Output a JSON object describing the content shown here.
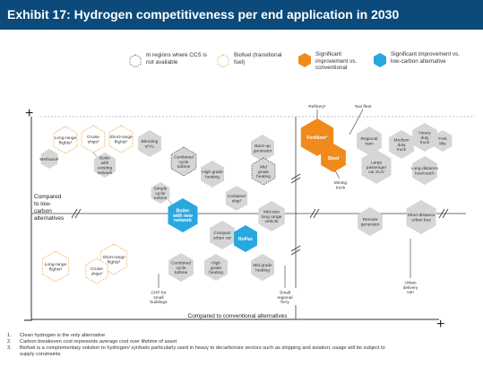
{
  "header": {
    "title": "Exhibit 17: Hydrogen competitiveness per end application in 2030"
  },
  "legend": {
    "ccs": "In regions where CCS is not available",
    "biofuel": "Biofuel (transitional fuel)",
    "conventional": "Significant improvement vs. conventional",
    "low_carbon": "Significant improvement vs. low-carbon alternative",
    "colors": {
      "conventional": "#f08a1c",
      "low_carbon": "#29a7e1",
      "grey": "#d6d6d6"
    }
  },
  "axes": {
    "x_label": "Compared to conventional alternatives",
    "y_label": "Compared to low-carbon alternatives",
    "plus": "+",
    "minus": "–"
  },
  "chart_data": {
    "type": "diagram",
    "items": [
      {
        "label": "Long-range flights³",
        "style": "biofuel"
      },
      {
        "label": "Cruise ships³",
        "style": "biofuel"
      },
      {
        "label": "Short-range flights³",
        "style": "biofuel"
      },
      {
        "label": "Methanol¹",
        "style": "grey"
      },
      {
        "label": "Blending of H₂",
        "style": "grey"
      },
      {
        "label": "Boiler with existing network",
        "style": "grey"
      },
      {
        "label": "Combined cycle turbine",
        "style": "ccs"
      },
      {
        "label": "High grade heating",
        "style": "grey"
      },
      {
        "label": "Back-up generator",
        "style": "grey"
      },
      {
        "label": "Mid grade heating",
        "style": "ccs"
      },
      {
        "label": "Simple cycle turbine",
        "style": "grey"
      },
      {
        "label": "Boiler with new network",
        "style": "low_carbon"
      },
      {
        "label": "Container ship³",
        "style": "grey"
      },
      {
        "label": "Mid-size long range vehicle",
        "style": "grey"
      },
      {
        "label": "Compact urban car",
        "style": "grey"
      },
      {
        "label": "RoPax",
        "style": "low_carbon"
      },
      {
        "label": "Short-range flights³",
        "style": "biofuel"
      },
      {
        "label": "Long-range flights³",
        "style": "biofuel"
      },
      {
        "label": "Cruise ships³",
        "style": "biofuel"
      },
      {
        "label": "Combined cycle turbine",
        "style": "grey"
      },
      {
        "label": "High grade heating",
        "style": "grey"
      },
      {
        "label": "Mid grade heating",
        "style": "grey"
      },
      {
        "label": "CHP for small buildings",
        "style": "callout"
      },
      {
        "label": "Small regional ferry",
        "style": "callout"
      },
      {
        "label": "Refinery¹",
        "style": "callout"
      },
      {
        "label": "Taxi fleet",
        "style": "callout"
      },
      {
        "label": "Fertilizer¹",
        "style": "conventional"
      },
      {
        "label": "Steel",
        "style": "conventional"
      },
      {
        "label": "Mining truck",
        "style": "callout"
      },
      {
        "label": "Regional train",
        "style": "grey"
      },
      {
        "label": "Large passenger car SUV",
        "style": "grey"
      },
      {
        "label": "Heavy duty truck",
        "style": "grey"
      },
      {
        "label": "Fork lifts",
        "style": "grey"
      },
      {
        "label": "Medium duty truck",
        "style": "grey"
      },
      {
        "label": "Long-distance bus/coach",
        "style": "grey"
      },
      {
        "label": "Remote generator",
        "style": "grey"
      },
      {
        "label": "Short-distance urban bus",
        "style": "grey"
      },
      {
        "label": "Urban delivery van",
        "style": "callout"
      }
    ]
  },
  "footnotes": [
    {
      "n": "1.",
      "text": "Clean hydrogen is the only alternative"
    },
    {
      "n": "2.",
      "text": "Carbon breakeven cost represents average cost over lifetime of asset"
    },
    {
      "n": "3.",
      "text": "Biofuel is a complementary solution to hydrogen/ synfuels particularly used in heavy to decarbonize sectors such as shipping and aviation; usage will be subject to"
    },
    {
      "n": "",
      "text": "supply constraints"
    }
  ]
}
